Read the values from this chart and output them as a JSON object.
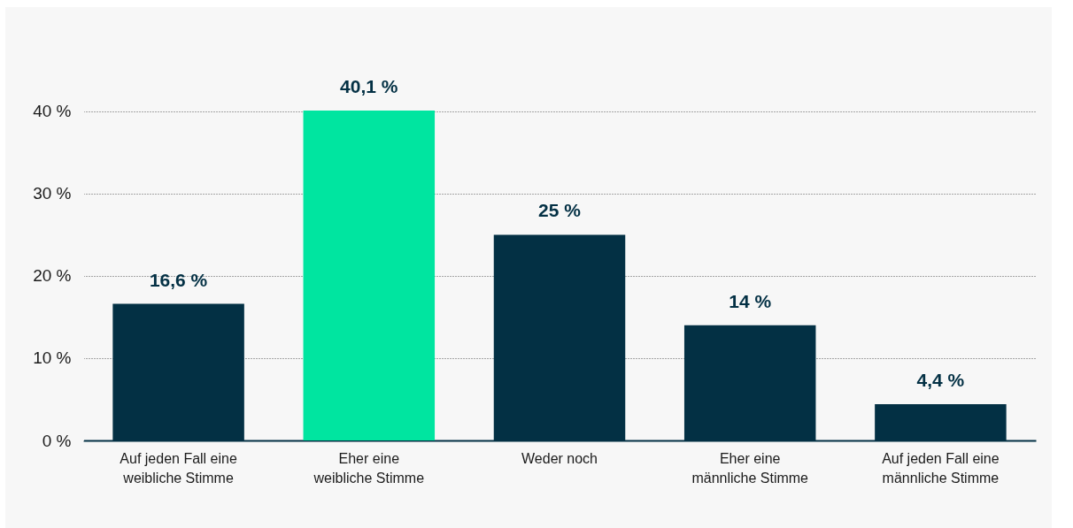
{
  "chart_data": {
    "type": "bar",
    "categories": [
      "Auf jeden Fall eine weibliche Stimme",
      "Eher eine weibliche Stimme",
      "Weder noch",
      "Eher eine männliche Stimme",
      "Auf jeden Fall eine männliche Stimme"
    ],
    "values": [
      16.6,
      40.1,
      25,
      14,
      4.4
    ],
    "colors": [
      "#033044",
      "#00e5a0",
      "#033044",
      "#033044",
      "#033044"
    ],
    "value_labels": [
      "16,6 %",
      "40,1 %",
      "25 %",
      "14 %",
      "4,4 %"
    ],
    "ylim": [
      0,
      40.1
    ],
    "yticks": [
      {
        "value": 0,
        "label": "0 %"
      },
      {
        "value": 10,
        "label": "10 %"
      },
      {
        "value": 20,
        "label": "20 %"
      },
      {
        "value": 30,
        "label": "30 %"
      },
      {
        "value": 40,
        "label": "40 %"
      }
    ],
    "grid": "y"
  }
}
